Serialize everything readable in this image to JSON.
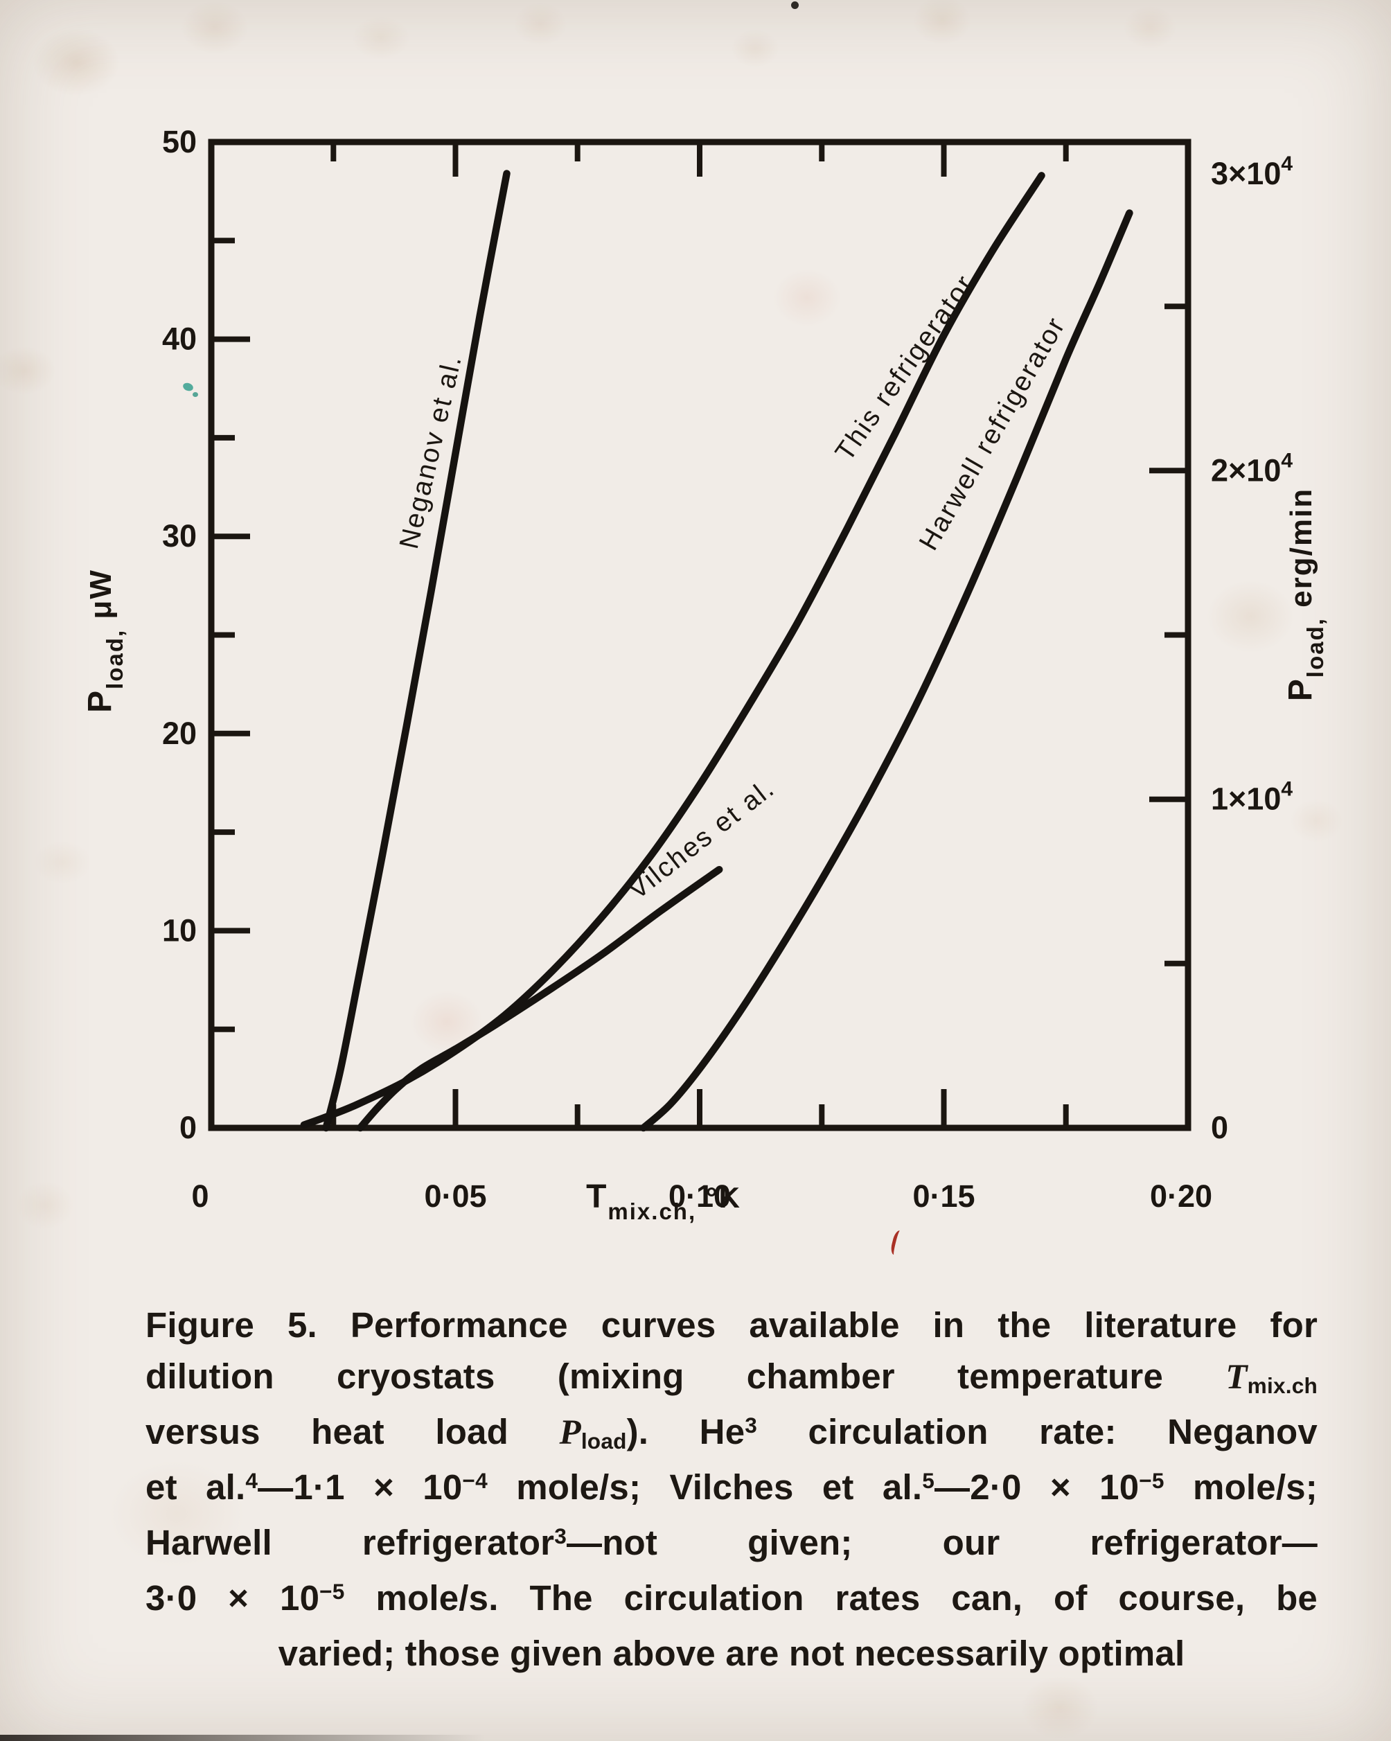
{
  "page": {
    "background": "#f1ece7",
    "ink": "#1b1611"
  },
  "chart_data": {
    "type": "line",
    "title": "",
    "xlabel": "T mix.ch, °K",
    "ylabel_left": "P load, μW",
    "ylabel_right": "P load, erg/min",
    "grid": false,
    "legend_position": "labels-along-curves",
    "x_axis": {
      "title_parts": {
        "main": "T",
        "sub": "mix.ch,",
        "rest": " °K"
      },
      "range": [
        0,
        0.2
      ],
      "major_ticks": [
        0.05,
        0.1,
        0.15
      ],
      "minor_ticks": [
        0.025,
        0.075,
        0.125,
        0.175
      ],
      "tick_labels": [
        {
          "v": 0,
          "label": "0"
        },
        {
          "v": 0.05,
          "label": "0·05"
        },
        {
          "v": 0.1,
          "label": "0·10"
        },
        {
          "v": 0.15,
          "label": "0·15"
        },
        {
          "v": 0.2,
          "label": "0·20"
        }
      ]
    },
    "y_axis_left": {
      "title_parts": {
        "main": "P",
        "sub": "load,",
        "rest": " μW"
      },
      "unit": "μW",
      "range": [
        0,
        50
      ],
      "major_ticks": [
        10,
        20,
        30,
        40
      ],
      "minor_ticks": [
        5,
        15,
        25,
        35,
        45
      ],
      "tick_labels": [
        {
          "v": 0,
          "label": "0"
        },
        {
          "v": 10,
          "label": "10"
        },
        {
          "v": 20,
          "label": "20"
        },
        {
          "v": 30,
          "label": "30"
        },
        {
          "v": 40,
          "label": "40"
        },
        {
          "v": 50,
          "label": "50"
        }
      ]
    },
    "y_axis_right": {
      "title_parts": {
        "main": "P",
        "sub": "load,",
        "rest": " erg/min"
      },
      "unit": "erg/min",
      "range": [
        0,
        30000
      ],
      "major_ticks": [
        10000,
        20000
      ],
      "minor_ticks": [
        5000,
        15000,
        25000
      ],
      "tick_labels": [
        {
          "v": 0,
          "base": "0",
          "sup": ""
        },
        {
          "v": 10000,
          "base": "1×10",
          "sup": "4"
        },
        {
          "v": 20000,
          "base": "2×10",
          "sup": "4"
        },
        {
          "v": 30000,
          "base": "3×10",
          "sup": "4"
        }
      ]
    },
    "series": [
      {
        "id": "neganov",
        "label": "Neganov et al.",
        "points": [
          [
            0.0235,
            0
          ],
          [
            0.0265,
            3
          ],
          [
            0.03,
            7.4
          ],
          [
            0.035,
            13.8
          ],
          [
            0.04,
            20.4
          ],
          [
            0.045,
            27.2
          ],
          [
            0.05,
            34.2
          ],
          [
            0.055,
            41.2
          ],
          [
            0.0605,
            48.4
          ]
        ],
        "label_pos": [
          0.0467,
          34.2
        ],
        "label_angle": -77
      },
      {
        "id": "this_refrigerator",
        "label": "This refrigerator",
        "points": [
          [
            0.019,
            0.15
          ],
          [
            0.024,
            0.6
          ],
          [
            0.03,
            1.2
          ],
          [
            0.04,
            2.4
          ],
          [
            0.05,
            3.9
          ],
          [
            0.06,
            5.7
          ],
          [
            0.07,
            8.0
          ],
          [
            0.08,
            10.7
          ],
          [
            0.09,
            13.8
          ],
          [
            0.1,
            17.4
          ],
          [
            0.11,
            21.4
          ],
          [
            0.12,
            25.6
          ],
          [
            0.13,
            30.3
          ],
          [
            0.14,
            35.2
          ],
          [
            0.15,
            40.2
          ],
          [
            0.16,
            44.5
          ],
          [
            0.17,
            48.3
          ]
        ],
        "label_pos": [
          0.1435,
          38.3
        ],
        "label_angle": -55
      },
      {
        "id": "harwell",
        "label": "Harwell refrigerator",
        "points": [
          [
            0.0885,
            0
          ],
          [
            0.094,
            1.2
          ],
          [
            0.1,
            3.0
          ],
          [
            0.108,
            5.8
          ],
          [
            0.116,
            8.9
          ],
          [
            0.125,
            12.6
          ],
          [
            0.135,
            17.0
          ],
          [
            0.145,
            21.8
          ],
          [
            0.155,
            27.2
          ],
          [
            0.165,
            33.0
          ],
          [
            0.175,
            39.0
          ],
          [
            0.182,
            42.9
          ],
          [
            0.188,
            46.4
          ]
        ],
        "label_pos": [
          0.1615,
          35.0
        ],
        "label_angle": -60
      },
      {
        "id": "vilches",
        "label": "Vilches et al.",
        "points": [
          [
            0.0305,
            0
          ],
          [
            0.034,
            1.0
          ],
          [
            0.038,
            2.0
          ],
          [
            0.043,
            3.0
          ],
          [
            0.05,
            4.0
          ],
          [
            0.058,
            5.2
          ],
          [
            0.068,
            6.8
          ],
          [
            0.08,
            8.8
          ],
          [
            0.092,
            11.0
          ],
          [
            0.104,
            13.1
          ]
        ],
        "label_pos": [
          0.1015,
          14.3
        ],
        "label_angle": -38
      }
    ]
  },
  "caption": {
    "lines": [
      {
        "align": "justify",
        "segments": [
          {
            "t": "Figure 5. Performance curves available in the literature for"
          }
        ]
      },
      {
        "align": "justify",
        "segments": [
          {
            "t": "dilution cryostats (mixing chamber temperature "
          },
          {
            "t": "T",
            "s": "it"
          },
          {
            "t": "mix.ch",
            "s": "sub"
          }
        ]
      },
      {
        "align": "justify",
        "segments": [
          {
            "t": "versus heat load "
          },
          {
            "t": "P",
            "s": "it"
          },
          {
            "t": "load",
            "s": "sub"
          },
          {
            "t": "). He"
          },
          {
            "t": "3",
            "s": "sup"
          },
          {
            "t": " circulation rate: Neganov"
          }
        ]
      },
      {
        "align": "justify",
        "segments": [
          {
            "t": "et al."
          },
          {
            "t": "4",
            "s": "sup"
          },
          {
            "t": "—1·1 × 10"
          },
          {
            "t": "−4",
            "s": "sup"
          },
          {
            "t": " mole/s; Vilches et al."
          },
          {
            "t": "5",
            "s": "sup"
          },
          {
            "t": "—2·0 × 10"
          },
          {
            "t": "−5",
            "s": "sup"
          },
          {
            "t": " mole/s;"
          }
        ]
      },
      {
        "align": "justify",
        "segments": [
          {
            "t": "Harwell refrigerator"
          },
          {
            "t": "3",
            "s": "sup"
          },
          {
            "t": "—not given; our refrigerator—"
          }
        ]
      },
      {
        "align": "justify",
        "segments": [
          {
            "t": "3·0 × 10"
          },
          {
            "t": "−5",
            "s": "sup"
          },
          {
            "t": " mole/s. The circulation rates can, of course, be"
          }
        ]
      },
      {
        "align": "center",
        "segments": [
          {
            "t": "varied; those given above are not necessarily optimal"
          }
        ]
      }
    ]
  }
}
